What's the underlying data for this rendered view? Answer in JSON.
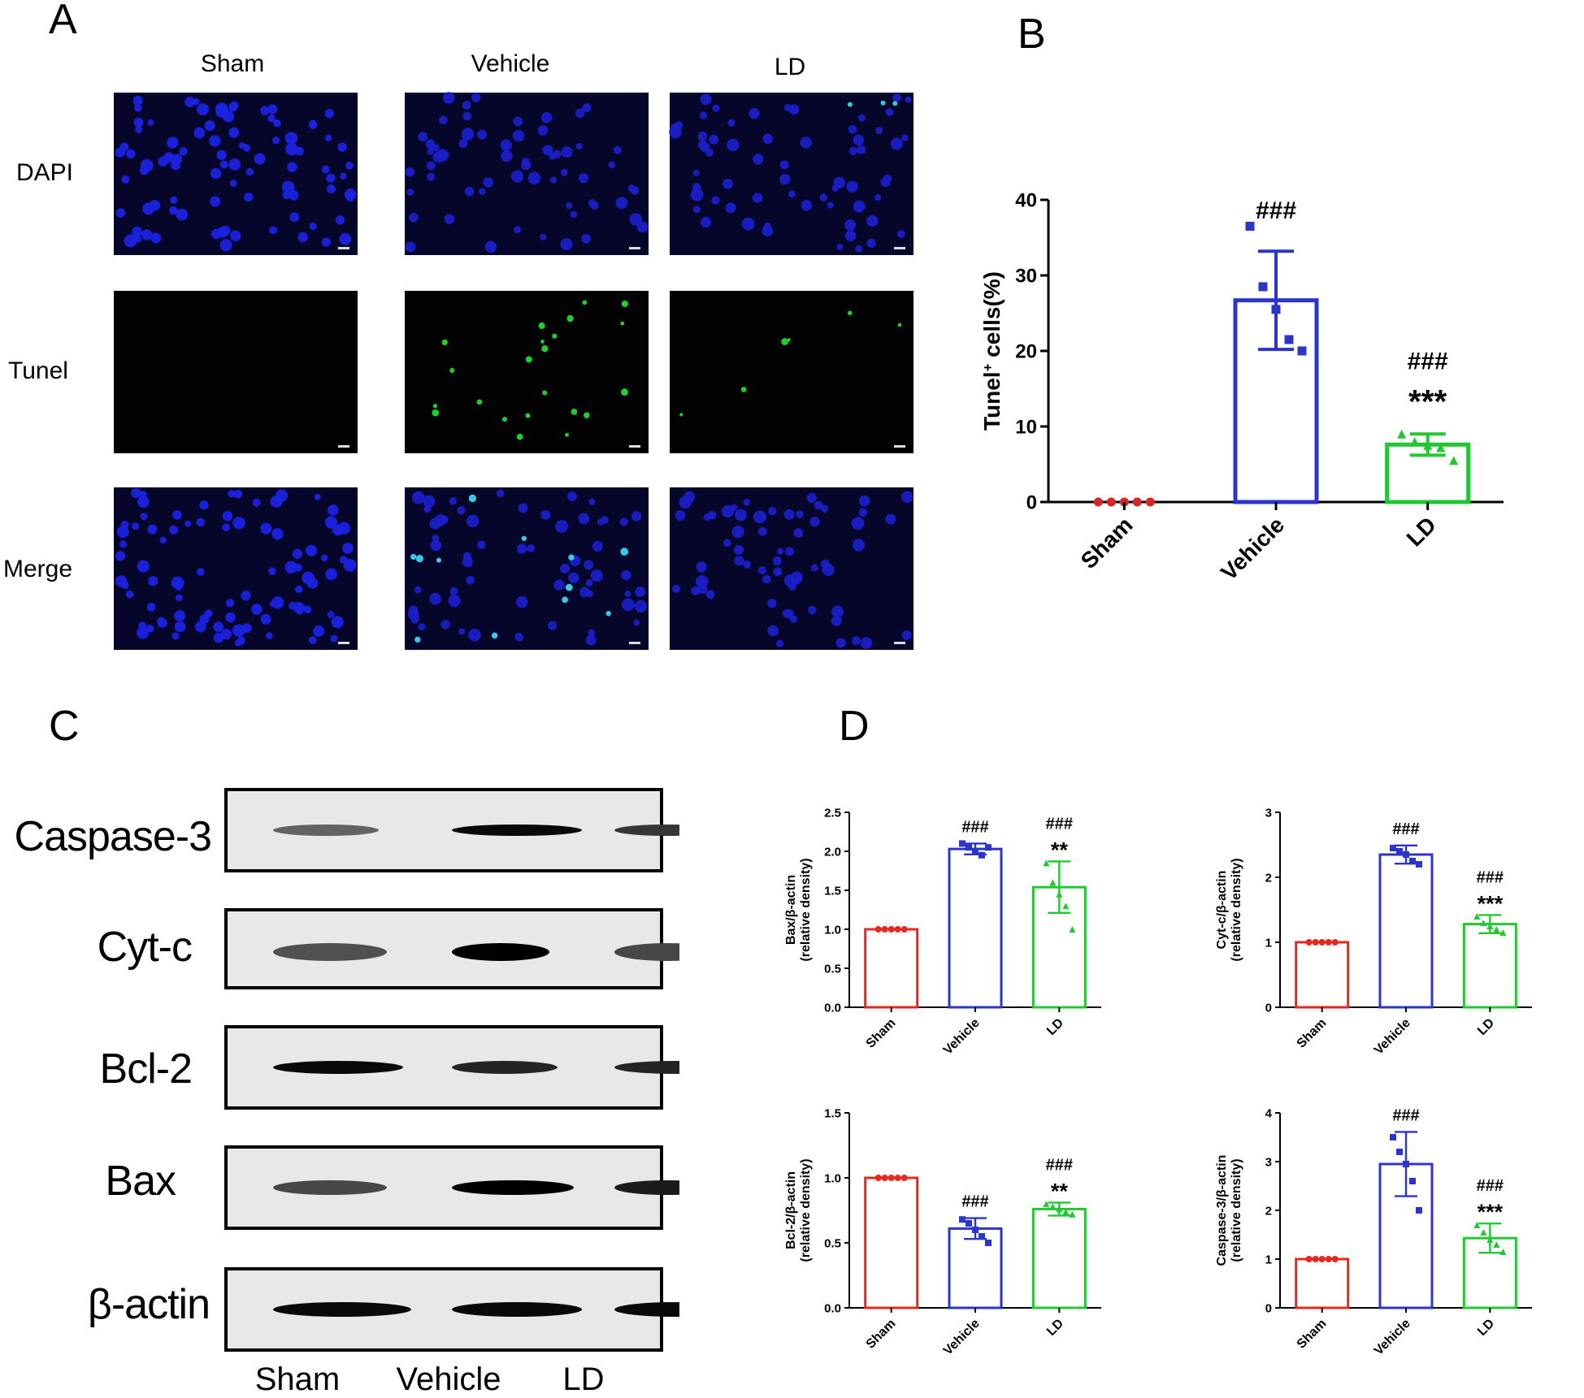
{
  "panels": {
    "a": "A",
    "b": "B",
    "c": "C",
    "d": "D"
  },
  "panel_a": {
    "columns": [
      "Sham",
      "Vehicle",
      "LD"
    ],
    "rows": [
      "DAPI",
      "Tunel",
      "Merge"
    ]
  },
  "panel_c": {
    "proteins": [
      "Caspase-3",
      "Cyt-c",
      "Bcl-2",
      "Bax",
      "β-actin"
    ],
    "lanes": [
      "Sham",
      "Vehicle",
      "LD"
    ]
  },
  "chart_data": [
    {
      "type": "bar",
      "panel": "B",
      "categories": [
        "Sham",
        "Vehicle",
        "LD"
      ],
      "values": [
        0,
        26.7,
        7.6
      ],
      "errors": [
        0,
        6.5,
        1.4
      ],
      "points": [
        [
          0,
          0,
          0,
          0,
          0
        ],
        [
          36.5,
          28.5,
          25.5,
          21.5,
          20.0
        ],
        [
          9.0,
          8.0,
          7.5,
          7.2,
          5.5
        ]
      ],
      "markers": [
        "circle",
        "square",
        "triangle"
      ],
      "annotations": [
        "",
        "###",
        "###\n***"
      ],
      "colors": [
        "#d62728",
        "#2b35c9",
        "#22c732"
      ],
      "ylabel": "Tunel+ cells(%)",
      "ylim": [
        0,
        40
      ],
      "yticks": [
        0,
        10,
        20,
        30,
        40
      ]
    },
    {
      "type": "bar",
      "panel": "D1",
      "categories": [
        "Sham",
        "Vehicle",
        "LD"
      ],
      "values": [
        1.0,
        2.03,
        1.54
      ],
      "errors": [
        0,
        0.07,
        0.33
      ],
      "points": [
        [
          1,
          1,
          1,
          1,
          1
        ],
        [
          2.1,
          2.05,
          2.0,
          1.95,
          2.05
        ],
        [
          1.85,
          1.6,
          1.45,
          1.3,
          1.0
        ]
      ],
      "markers": [
        "circle",
        "square",
        "triangle"
      ],
      "annotations": [
        "",
        "###",
        "###\n**"
      ],
      "colors": [
        "#e8281e",
        "#2b35c9",
        "#22c732"
      ],
      "ylabel": "Bax/β-actin\n(relative density)",
      "ylim": [
        0,
        2.5
      ],
      "yticks": [
        "0.0",
        "0.5",
        "1.0",
        "1.5",
        "2.0",
        "2.5"
      ]
    },
    {
      "type": "bar",
      "panel": "D2",
      "categories": [
        "Sham",
        "Vehicle",
        "LD"
      ],
      "values": [
        1.0,
        2.35,
        1.28
      ],
      "errors": [
        0,
        0.14,
        0.14
      ],
      "points": [
        [
          1,
          1,
          1,
          1,
          1
        ],
        [
          2.45,
          2.4,
          2.35,
          2.25,
          2.2
        ],
        [
          1.4,
          1.3,
          1.25,
          1.2,
          1.15
        ]
      ],
      "markers": [
        "circle",
        "square",
        "triangle"
      ],
      "annotations": [
        "",
        "###",
        "###\n***"
      ],
      "colors": [
        "#e8281e",
        "#2b35c9",
        "#22c732"
      ],
      "ylabel": "Cyt-c/β-actin\n(relative density)",
      "ylim": [
        0,
        3
      ],
      "yticks": [
        "0",
        "1",
        "2",
        "3"
      ]
    },
    {
      "type": "bar",
      "panel": "D3",
      "categories": [
        "Sham",
        "Vehicle",
        "LD"
      ],
      "values": [
        1.0,
        0.61,
        0.76
      ],
      "errors": [
        0,
        0.08,
        0.05
      ],
      "points": [
        [
          1,
          1,
          1,
          1,
          1
        ],
        [
          0.68,
          0.65,
          0.6,
          0.55,
          0.5
        ],
        [
          0.8,
          0.78,
          0.76,
          0.74,
          0.72
        ]
      ],
      "markers": [
        "circle",
        "square",
        "triangle"
      ],
      "annotations": [
        "",
        "###",
        "###\n**"
      ],
      "colors": [
        "#e8281e",
        "#2b35c9",
        "#22c732"
      ],
      "ylabel": "Bcl-2/β-actin\n(relative density)",
      "ylim": [
        0,
        1.5
      ],
      "yticks": [
        "0.0",
        "0.5",
        "1.0",
        "1.5"
      ]
    },
    {
      "type": "bar",
      "panel": "D4",
      "categories": [
        "Sham",
        "Vehicle",
        "LD"
      ],
      "values": [
        1.0,
        2.95,
        1.43
      ],
      "errors": [
        0,
        0.66,
        0.3
      ],
      "points": [
        [
          1,
          1,
          1,
          1,
          1
        ],
        [
          3.5,
          3.2,
          2.95,
          2.6,
          2.0
        ],
        [
          1.7,
          1.55,
          1.4,
          1.3,
          1.15
        ]
      ],
      "markers": [
        "circle",
        "square",
        "triangle"
      ],
      "annotations": [
        "",
        "###",
        "###\n***"
      ],
      "colors": [
        "#e8281e",
        "#2b35c9",
        "#22c732"
      ],
      "ylabel": "Caspase-3/β-actin\n(relative density)",
      "ylim": [
        0,
        4
      ],
      "yticks": [
        "0",
        "1",
        "2",
        "3",
        "4"
      ]
    }
  ]
}
